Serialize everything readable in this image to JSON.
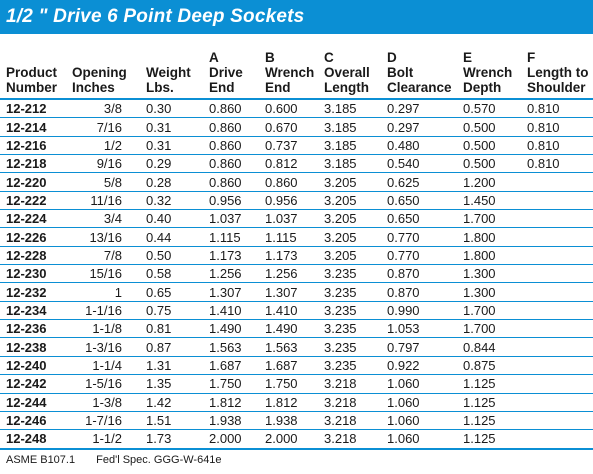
{
  "title": "1/2 \" Drive 6 Point Deep Sockets",
  "headers": [
    [
      "",
      "Product",
      "Number"
    ],
    [
      "",
      "Opening",
      "Inches"
    ],
    [
      "",
      "Weight",
      "Lbs."
    ],
    [
      "A",
      "Drive",
      "End"
    ],
    [
      "B",
      "Wrench",
      "End"
    ],
    [
      "C",
      "Overall",
      "Length"
    ],
    [
      "D",
      "Bolt",
      "Clearance"
    ],
    [
      "E",
      "Wrench",
      "Depth"
    ],
    [
      "F",
      "Length to",
      "Shoulder"
    ]
  ],
  "rows": [
    [
      "12-212",
      "3/8",
      "0.30",
      "0.860",
      "0.600",
      "3.185",
      "0.297",
      "0.570",
      "0.810"
    ],
    [
      "12-214",
      "7/16",
      "0.31",
      "0.860",
      "0.670",
      "3.185",
      "0.297",
      "0.500",
      "0.810"
    ],
    [
      "12-216",
      "1/2",
      "0.31",
      "0.860",
      "0.737",
      "3.185",
      "0.480",
      "0.500",
      "0.810"
    ],
    [
      "12-218",
      "9/16",
      "0.29",
      "0.860",
      "0.812",
      "3.185",
      "0.540",
      "0.500",
      "0.810"
    ],
    [
      "12-220",
      "5/8",
      "0.28",
      "0.860",
      "0.860",
      "3.205",
      "0.625",
      "1.200",
      ""
    ],
    [
      "12-222",
      "11/16",
      "0.32",
      "0.956",
      "0.956",
      "3.205",
      "0.650",
      "1.450",
      ""
    ],
    [
      "12-224",
      "3/4",
      "0.40",
      "1.037",
      "1.037",
      "3.205",
      "0.650",
      "1.700",
      ""
    ],
    [
      "12-226",
      "13/16",
      "0.44",
      "1.115",
      "1.115",
      "3.205",
      "0.770",
      "1.800",
      ""
    ],
    [
      "12-228",
      "7/8",
      "0.50",
      "1.173",
      "1.173",
      "3.205",
      "0.770",
      "1.800",
      ""
    ],
    [
      "12-230",
      "15/16",
      "0.58",
      "1.256",
      "1.256",
      "3.235",
      "0.870",
      "1.300",
      ""
    ],
    [
      "12-232",
      "1",
      "0.65",
      "1.307",
      "1.307",
      "3.235",
      "0.870",
      "1.300",
      ""
    ],
    [
      "12-234",
      "1-1/16",
      "0.75",
      "1.410",
      "1.410",
      "3.235",
      "0.990",
      "1.700",
      ""
    ],
    [
      "12-236",
      "1-1/8",
      "0.81",
      "1.490",
      "1.490",
      "3.235",
      "1.053",
      "1.700",
      ""
    ],
    [
      "12-238",
      "1-3/16",
      "0.87",
      "1.563",
      "1.563",
      "3.235",
      "0.797",
      "0.844",
      ""
    ],
    [
      "12-240",
      "1-1/4",
      "1.31",
      "1.687",
      "1.687",
      "3.235",
      "0.922",
      "0.875",
      ""
    ],
    [
      "12-242",
      "1-5/16",
      "1.35",
      "1.750",
      "1.750",
      "3.218",
      "1.060",
      "1.125",
      ""
    ],
    [
      "12-244",
      "1-3/8",
      "1.42",
      "1.812",
      "1.812",
      "3.218",
      "1.060",
      "1.125",
      ""
    ],
    [
      "12-246",
      "1-7/16",
      "1.51",
      "1.938",
      "1.938",
      "3.218",
      "1.060",
      "1.125",
      ""
    ],
    [
      "12-248",
      "1-1/2",
      "1.73",
      "2.000",
      "2.000",
      "3.218",
      "1.060",
      "1.125",
      ""
    ]
  ],
  "footer": {
    "standard": "ASME B107.1",
    "spec": "Fed'l Spec. GGG-W-641e"
  },
  "colors": {
    "accent": "#0b8fd4",
    "title_text": "#ffffff"
  }
}
